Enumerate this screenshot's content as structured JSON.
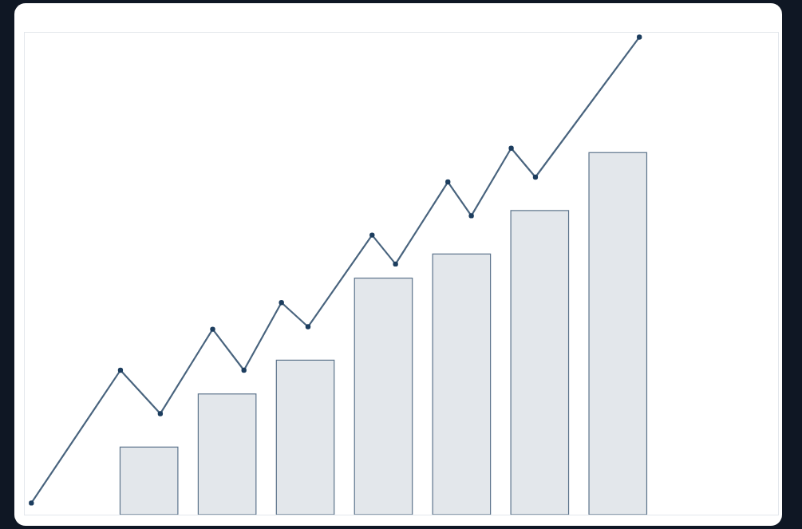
{
  "chart_data": [
    {
      "type": "bar",
      "x": [
        1,
        2,
        3,
        4,
        5,
        6,
        7
      ],
      "values": [
        14,
        25,
        32,
        49,
        54,
        63,
        75
      ],
      "color": "#1c3d5e",
      "xlim": [
        -0.6,
        9.05
      ],
      "ylim": [
        0,
        100
      ],
      "tick_labels": false
    },
    {
      "type": "line",
      "x": [
        -0.51,
        0.63,
        1.14,
        1.81,
        2.21,
        2.69,
        3.03,
        3.85,
        4.15,
        4.82,
        5.12,
        5.63,
        5.94,
        7.27
      ],
      "values": [
        2.5,
        30,
        21,
        38.5,
        30,
        44,
        39,
        58,
        52,
        69,
        62,
        76,
        70,
        99
      ],
      "color": "#1c3d5e",
      "marker": "circle",
      "xlim": [
        -0.6,
        9.05
      ],
      "ylim": [
        0,
        100
      ],
      "tick_labels": false
    }
  ]
}
